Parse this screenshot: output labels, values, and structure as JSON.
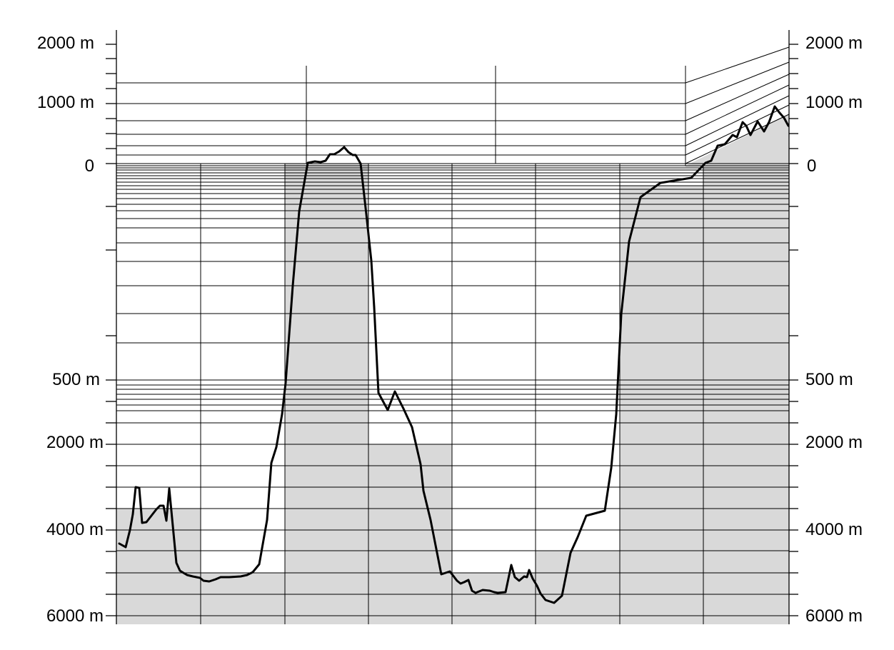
{
  "labels": {
    "left": [
      "2000 m",
      "1000 m",
      "0",
      "500 m",
      "2000 m",
      "4000 m",
      "6000 m"
    ],
    "right": [
      "2000 m",
      "1000 m",
      "0",
      "500 m",
      "2000 m",
      "4000 m",
      "6000 m"
    ]
  },
  "colors": {
    "shade": "#d9d9d9",
    "line": "#000000",
    "background": "#ffffff"
  }
}
